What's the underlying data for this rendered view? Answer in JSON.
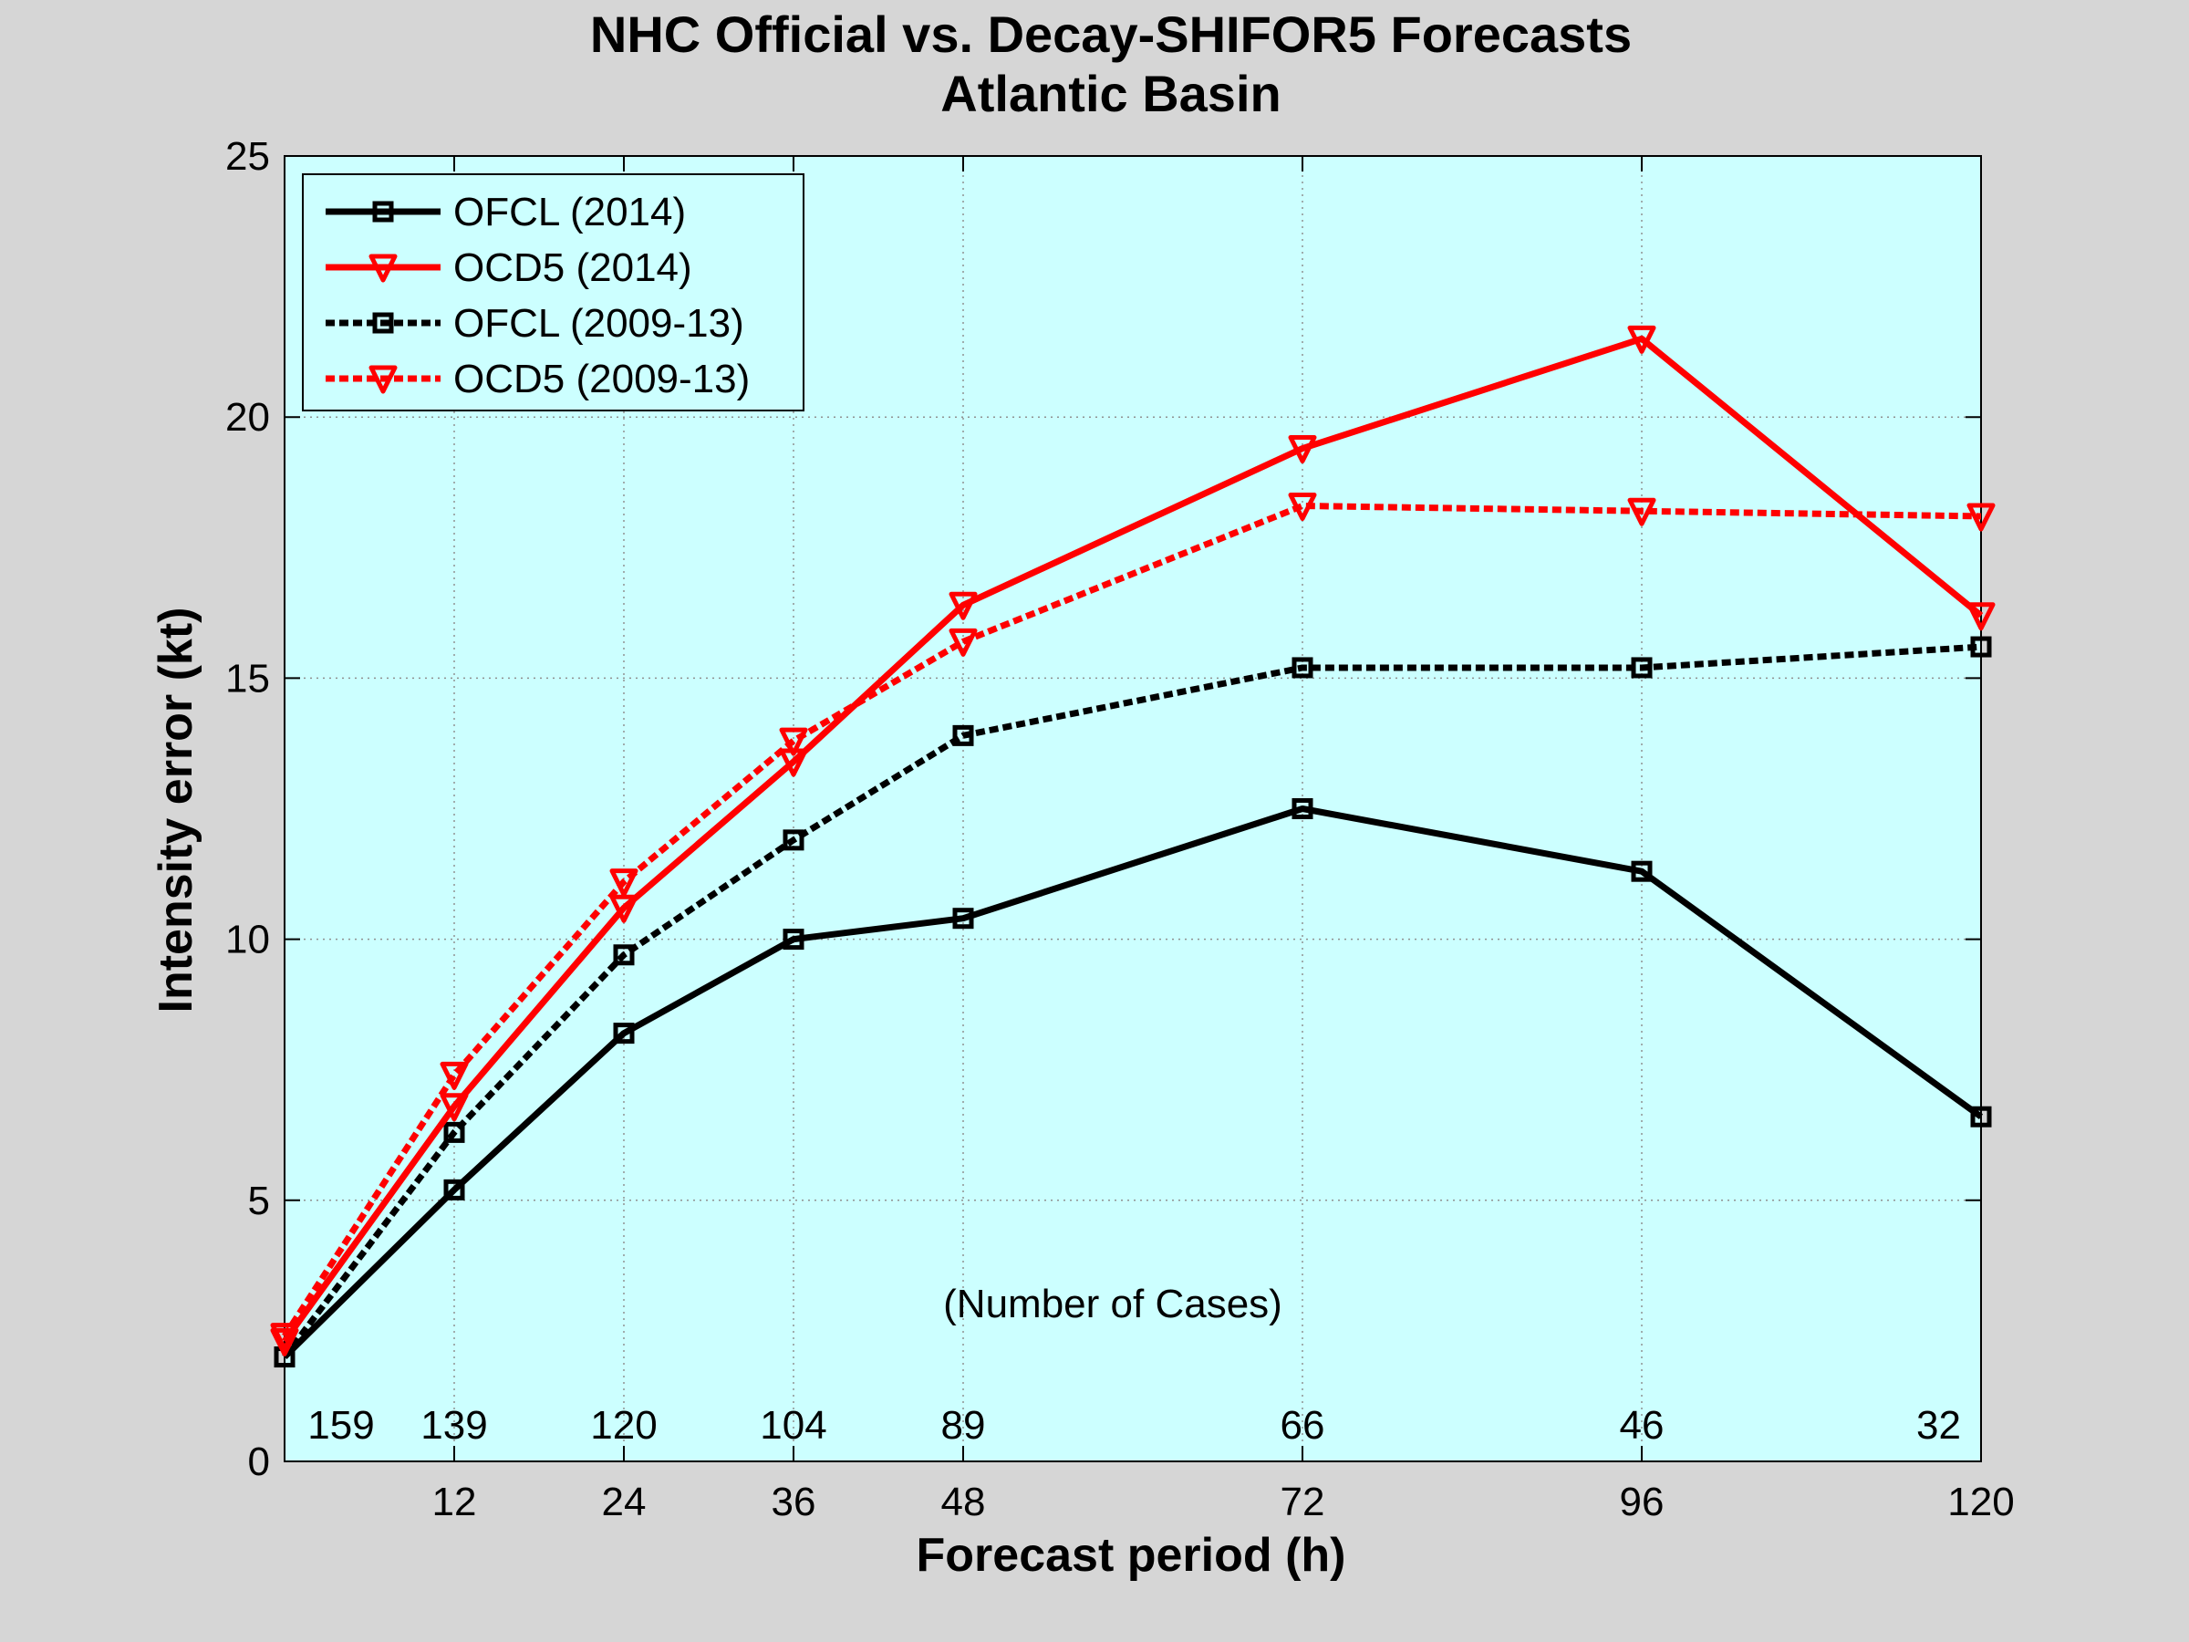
{
  "chart_data": {
    "type": "line",
    "title": "NHC Official vs. Decay-SHIFOR5 Forecasts",
    "subtitle": "Atlantic Basin",
    "xlabel": "Forecast period (h)",
    "ylabel": "Intensity error (kt)",
    "xlim": [
      0,
      120
    ],
    "ylim": [
      0,
      25
    ],
    "x_ticks": [
      12,
      24,
      36,
      48,
      72,
      96,
      120
    ],
    "y_ticks": [
      0,
      5,
      10,
      15,
      20,
      25
    ],
    "grid": true,
    "legend_position": "top-left",
    "x": [
      0,
      12,
      24,
      36,
      48,
      72,
      96,
      120
    ],
    "series": [
      {
        "name": "OFCL (2014)",
        "color": "#000000",
        "style": "solid",
        "marker": "square",
        "values": [
          2.0,
          5.2,
          8.2,
          10.0,
          10.4,
          12.5,
          11.3,
          6.6
        ]
      },
      {
        "name": "OCD5 (2014)",
        "color": "#ff0000",
        "style": "solid",
        "marker": "triangle-down",
        "values": [
          2.3,
          6.8,
          10.6,
          13.4,
          16.4,
          19.4,
          21.5,
          16.2
        ]
      },
      {
        "name": "OFCL (2009-13)",
        "color": "#000000",
        "style": "dotted",
        "marker": "square",
        "values": [
          2.0,
          6.3,
          9.7,
          11.9,
          13.9,
          15.2,
          15.2,
          15.6
        ]
      },
      {
        "name": "OCD5 (2009-13)",
        "color": "#ff0000",
        "style": "dotted",
        "marker": "triangle-down",
        "values": [
          2.4,
          7.4,
          11.1,
          13.8,
          15.7,
          18.3,
          18.2,
          18.1
        ]
      }
    ],
    "annotation": "(Number of Cases)",
    "case_counts": [
      "159",
      "139",
      "120",
      "104",
      "89",
      "66",
      "46",
      "32"
    ],
    "case_count_x": [
      4,
      12,
      24,
      36,
      48,
      72,
      96,
      117
    ]
  }
}
